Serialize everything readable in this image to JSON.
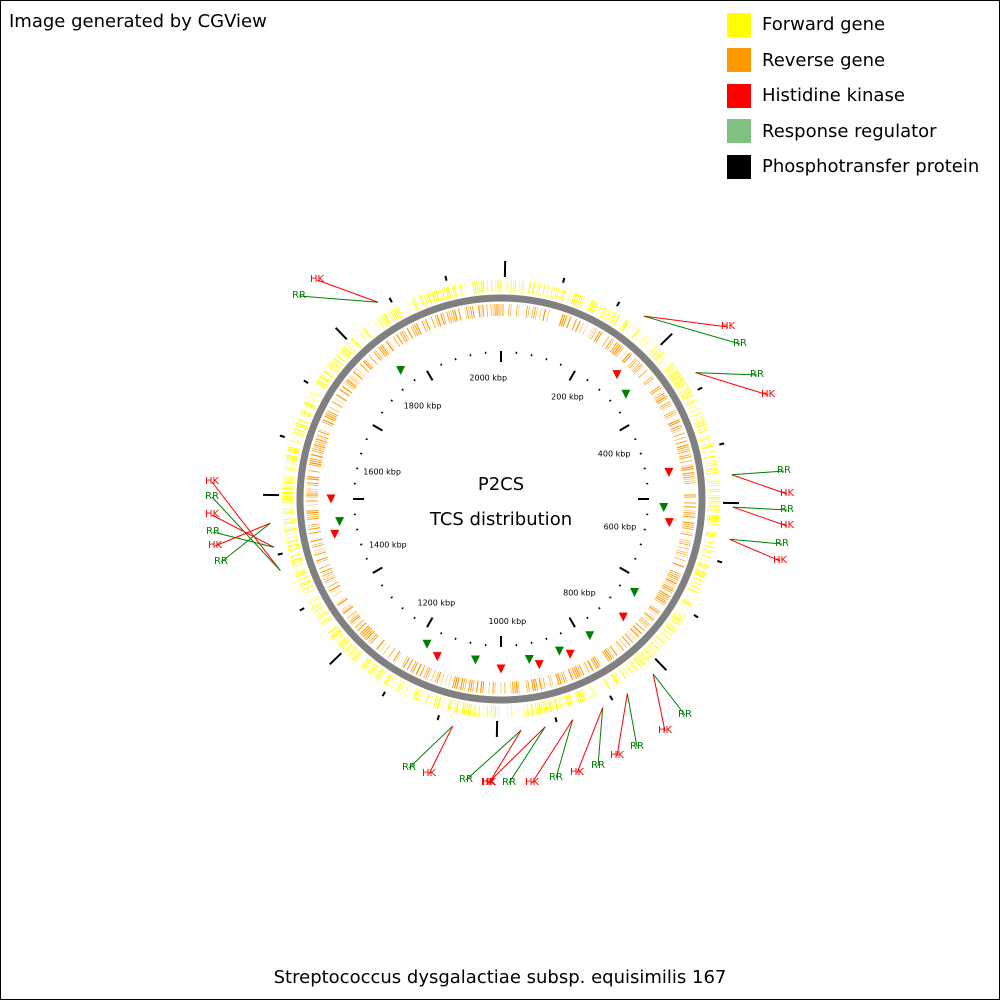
{
  "credit": "Image generated by CGView",
  "legend": [
    {
      "label": "Forward gene",
      "color": "#ffff00"
    },
    {
      "label": "Reverse gene",
      "color": "#ff9900"
    },
    {
      "label": "Histidine kinase",
      "color": "#ff0000"
    },
    {
      "label": "Response regulator",
      "color": "#80c080"
    },
    {
      "label": "Phosphotransfer protein",
      "color": "#000000"
    }
  ],
  "map": {
    "title_line1": "P2CS",
    "title_line2": "TCS distribution",
    "organism": "Streptococcus dysgalactiae subsp. equisimilis 167",
    "backbone_color": "#808080",
    "hk_color": "#ff0000",
    "rr_color": "#008000",
    "kbp_labels": [
      "200 kbp",
      "400 kbp",
      "600 kbp",
      "800 kbp",
      "1000 kbp",
      "1200 kbp",
      "1400 kbp",
      "1600 kbp",
      "1800 kbp",
      "2000 kbp"
    ],
    "tcs_callouts": [
      {
        "upper": "HK",
        "lower": "RR"
      },
      {
        "upper": "HK",
        "lower": "RR"
      },
      {
        "upper": "RR",
        "lower": "HK"
      },
      {
        "upper": "RR",
        "lower": "HK"
      },
      {
        "upper": "RR",
        "lower": "HK"
      },
      {
        "upper": "RR",
        "lower": "HK"
      },
      {
        "upper": "RR",
        "lower": "HK"
      },
      {
        "upper": "RR",
        "lower": "HK"
      },
      {
        "upper": "RR",
        "lower": "HK"
      },
      {
        "upper": "RR",
        "lower": "HK"
      },
      {
        "upper": "RR",
        "lower": "HK"
      },
      {
        "upper": "RR",
        "lower": "HK"
      },
      {
        "upper": "RR",
        "lower": "HK"
      },
      {
        "upper": "HK",
        "lower": "RR"
      },
      {
        "upper": "HK",
        "lower": "RR"
      },
      {
        "upper": "HK",
        "lower": "RR"
      }
    ]
  }
}
